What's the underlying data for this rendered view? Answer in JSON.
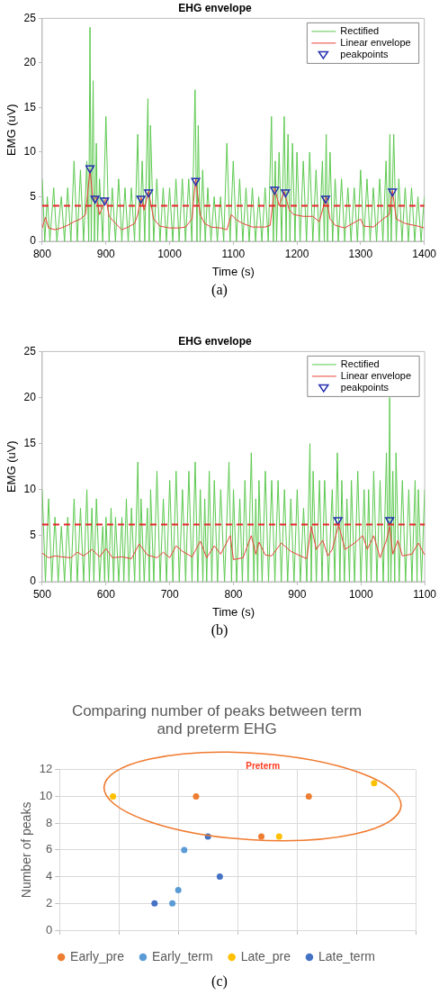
{
  "chart_data": [
    {
      "type": "line",
      "title": "EHG envelope",
      "xlabel": "Time (s)",
      "ylabel": "EMG (uV)",
      "xlim": [
        800,
        1400
      ],
      "xticks": [
        800,
        900,
        1000,
        1100,
        1200,
        1300,
        1400
      ],
      "ylim": [
        0,
        25
      ],
      "yticks": [
        0,
        5,
        10,
        15,
        20,
        25
      ],
      "grid": false,
      "legend": "top right",
      "annotations": [
        "(a)"
      ],
      "ref_lines": [
        {
          "axis": "y",
          "value": 4,
          "color": "#e8262b",
          "line_style": "dashed"
        }
      ],
      "series": [
        {
          "name": "Rectified",
          "type": "line",
          "color": "#5cc94f",
          "marker": "none",
          "x": [
            800,
            804,
            808,
            812,
            818,
            823,
            830,
            835,
            840,
            845,
            850,
            855,
            860,
            865,
            870,
            873,
            875,
            877,
            880,
            882,
            885,
            887,
            890,
            895,
            900,
            905,
            910,
            915,
            920,
            925,
            930,
            935,
            940,
            945,
            950,
            953,
            957,
            961,
            966,
            968,
            970,
            975,
            980,
            985,
            990,
            995,
            1000,
            1005,
            1010,
            1015,
            1020,
            1025,
            1030,
            1035,
            1040,
            1043,
            1045,
            1048,
            1052,
            1056,
            1060,
            1065,
            1070,
            1075,
            1080,
            1085,
            1090,
            1095,
            1100,
            1105,
            1110,
            1115,
            1120,
            1125,
            1130,
            1135,
            1140,
            1145,
            1150,
            1155,
            1160,
            1163,
            1166,
            1168,
            1172,
            1176,
            1180,
            1183,
            1186,
            1189,
            1193,
            1197,
            1200,
            1205,
            1210,
            1215,
            1220,
            1225,
            1230,
            1235,
            1240,
            1243,
            1246,
            1248,
            1252,
            1256,
            1260,
            1265,
            1270,
            1275,
            1280,
            1285,
            1290,
            1295,
            1300,
            1305,
            1310,
            1315,
            1320,
            1325,
            1330,
            1335,
            1340,
            1343,
            1346,
            1348,
            1352,
            1356,
            1360,
            1365,
            1370,
            1375,
            1380,
            1385,
            1390,
            1395,
            1400
          ],
          "values": [
            7,
            0,
            5,
            0,
            6,
            0,
            5,
            0,
            6,
            0,
            9,
            0,
            8,
            0,
            9,
            0,
            24,
            0,
            18,
            0,
            11,
            0,
            7,
            0,
            14,
            0,
            6,
            0,
            7,
            0,
            6,
            0,
            6,
            0,
            12,
            0,
            9,
            0,
            16,
            0,
            13,
            0,
            7,
            0,
            6,
            0,
            6,
            0,
            7,
            0,
            7,
            0,
            7,
            0,
            17,
            0,
            13,
            0,
            8,
            0,
            6,
            0,
            5,
            0,
            5,
            0,
            11,
            0,
            9,
            0,
            7,
            0,
            6,
            0,
            6,
            0,
            5,
            0,
            6,
            0,
            14,
            0,
            9,
            0,
            10,
            0,
            14,
            0,
            12,
            0,
            11,
            0,
            10,
            0,
            9,
            0,
            10,
            0,
            8,
            0,
            9,
            0,
            12,
            0,
            10,
            0,
            7,
            0,
            7,
            0,
            6,
            0,
            6,
            0,
            8,
            0,
            7,
            0,
            6,
            0,
            7,
            0,
            9,
            0,
            12,
            0,
            12,
            0,
            7,
            0,
            6,
            0,
            6,
            0,
            5,
            0,
            5
          ]
        },
        {
          "name": "Linear envelope",
          "type": "line",
          "color": "#e8413a",
          "marker": "none",
          "x": [
            800,
            805,
            810,
            820,
            830,
            840,
            850,
            860,
            868,
            875,
            880,
            885,
            890,
            900,
            905,
            915,
            925,
            935,
            945,
            950,
            955,
            960,
            967,
            975,
            985,
            1000,
            1015,
            1025,
            1035,
            1041,
            1048,
            1055,
            1065,
            1080,
            1090,
            1097,
            1105,
            1115,
            1130,
            1150,
            1158,
            1165,
            1172,
            1180,
            1188,
            1195,
            1210,
            1225,
            1235,
            1246,
            1252,
            1260,
            1275,
            1300,
            1305,
            1320,
            1335,
            1345,
            1350,
            1356,
            1370,
            1390,
            1400
          ],
          "values": [
            1.5,
            2.7,
            1.5,
            1.3,
            1.5,
            1.8,
            2.2,
            2.5,
            3,
            8,
            4.5,
            5,
            3,
            4.8,
            2.8,
            2,
            1.3,
            1.6,
            2,
            3,
            5,
            3.5,
            5.6,
            2.5,
            1.7,
            1.5,
            1.5,
            1.6,
            2.5,
            7,
            3,
            2,
            1.6,
            1.5,
            1.3,
            3,
            2.4,
            2,
            1.6,
            1.6,
            1.8,
            6,
            4,
            5.6,
            3.5,
            3,
            2.8,
            2.8,
            2.2,
            5,
            2.5,
            1.8,
            1.5,
            2.5,
            1.7,
            1.6,
            2.5,
            3,
            5.7,
            2.5,
            2,
            1.7,
            1.5
          ]
        },
        {
          "name": "peakpoints",
          "type": "scatter",
          "color": "#2630b0",
          "marker": "triangle",
          "x": [
            875,
            883,
            898,
            955,
            967,
            1041,
            1165,
            1182,
            1245,
            1350
          ],
          "values": [
            8.2,
            4.8,
            4.6,
            4.8,
            5.5,
            6.8,
            5.8,
            5.5,
            4.8,
            5.6
          ]
        }
      ]
    },
    {
      "type": "line",
      "title": "EHG envelope",
      "xlabel": "Time (s)",
      "ylabel": "EMG (uV)",
      "xlim": [
        500,
        1100
      ],
      "xticks": [
        500,
        600,
        700,
        800,
        900,
        1000,
        1100
      ],
      "ylim": [
        0,
        25
      ],
      "yticks": [
        0,
        5,
        10,
        15,
        20,
        25
      ],
      "grid": false,
      "legend": "top right",
      "annotations": [
        "(b)"
      ],
      "ref_lines": [
        {
          "axis": "y",
          "value": 6.2,
          "color": "#e8262b",
          "line_style": "dashed"
        }
      ],
      "series": [
        {
          "name": "Rectified",
          "type": "line",
          "color": "#5cc94f",
          "marker": "none",
          "x": [
            500,
            505,
            510,
            515,
            520,
            525,
            530,
            535,
            540,
            545,
            550,
            555,
            560,
            565,
            570,
            574,
            578,
            581,
            585,
            590,
            595,
            598,
            600,
            604,
            608,
            612,
            615,
            620,
            625,
            628,
            632,
            636,
            640,
            645,
            650,
            653,
            655,
            660,
            665,
            668,
            670,
            675,
            680,
            685,
            690,
            695,
            700,
            705,
            710,
            715,
            720,
            725,
            730,
            735,
            740,
            744,
            748,
            752,
            755,
            758,
            762,
            766,
            770,
            775,
            780,
            786,
            793,
            797,
            800,
            805,
            810,
            814,
            818,
            823,
            828,
            832,
            835,
            838,
            840,
            845,
            850,
            855,
            860,
            865,
            870,
            875,
            880,
            885,
            890,
            895,
            900,
            905,
            910,
            915,
            920,
            922,
            925,
            930,
            935,
            939,
            943,
            949,
            955,
            959,
            963,
            967,
            970,
            974,
            978,
            982,
            985,
            990,
            995,
            1000,
            1005,
            1009,
            1012,
            1016,
            1020,
            1025,
            1030,
            1035,
            1040,
            1043,
            1045,
            1047,
            1050,
            1053,
            1055,
            1060,
            1065,
            1070,
            1075,
            1080,
            1085,
            1088,
            1090,
            1095,
            1100
          ],
          "values": [
            10,
            0,
            9,
            0,
            7,
            0,
            6,
            0,
            7,
            0,
            9,
            0,
            8,
            0,
            10,
            0,
            8,
            0,
            9,
            0,
            6,
            0,
            7,
            0,
            8,
            0,
            7,
            0,
            7,
            0,
            9,
            0,
            8,
            0,
            13,
            0,
            9,
            0,
            8,
            0,
            10,
            0,
            12,
            0,
            9,
            0,
            11,
            0,
            12,
            0,
            10,
            0,
            12,
            0,
            13,
            0,
            10,
            0,
            9,
            0,
            12,
            0,
            11,
            0,
            10,
            0,
            13,
            0,
            10,
            0,
            9,
            0,
            11,
            0,
            14,
            0,
            9,
            0,
            11,
            0,
            12,
            0,
            11,
            0,
            11,
            0,
            10,
            0,
            9,
            0,
            10,
            0,
            8,
            0,
            15,
            0,
            12,
            0,
            11,
            0,
            11,
            0,
            10,
            0,
            14,
            0,
            11,
            0,
            9,
            0,
            11,
            0,
            12,
            0,
            10,
            0,
            10,
            0,
            12,
            0,
            11,
            0,
            14,
            0,
            20,
            0,
            12,
            0,
            14,
            0,
            11,
            0,
            10,
            0,
            11,
            0,
            10,
            0,
            10
          ]
        },
        {
          "name": "Linear envelope",
          "type": "line",
          "color": "#e8413a",
          "marker": "none",
          "x": [
            500,
            510,
            520,
            530,
            545,
            555,
            565,
            578,
            590,
            600,
            610,
            625,
            640,
            652,
            665,
            680,
            690,
            700,
            710,
            720,
            735,
            748,
            758,
            770,
            780,
            795,
            800,
            815,
            828,
            835,
            840,
            850,
            860,
            875,
            890,
            905,
            915,
            922,
            930,
            940,
            948,
            955,
            965,
            975,
            990,
            1003,
            1010,
            1020,
            1030,
            1040,
            1045,
            1050,
            1058,
            1065,
            1080,
            1090,
            1100
          ],
          "values": [
            3.1,
            2.6,
            2.8,
            2.7,
            2.6,
            3.2,
            2.8,
            3.5,
            2.7,
            3.6,
            2.6,
            2.7,
            2.5,
            4.1,
            2.9,
            2.6,
            3.2,
            2.6,
            3.9,
            3.3,
            2.7,
            4.4,
            2.6,
            3.9,
            3,
            5,
            2.4,
            2.6,
            5,
            3,
            4.3,
            2.9,
            2.8,
            4.2,
            3.3,
            2.8,
            2.5,
            6,
            3.5,
            4.5,
            2.8,
            3.5,
            6.2,
            3.5,
            4.2,
            5,
            3.5,
            5,
            2.6,
            4.5,
            6,
            3,
            4.5,
            2.8,
            3,
            4.2,
            2.9
          ]
        },
        {
          "name": "peakpoints",
          "type": "scatter",
          "color": "#2630b0",
          "marker": "triangle",
          "x": [
            964,
            1045
          ],
          "values": [
            6.7,
            6.7
          ]
        }
      ]
    },
    {
      "type": "scatter",
      "title": "Comparing number of peaks between term and preterm EHG",
      "ylabel": "Number of peaks",
      "ylim": [
        0,
        12
      ],
      "yticks": [
        0,
        2,
        4,
        6,
        8,
        10,
        12
      ],
      "grid": true,
      "tick_labels": "y",
      "legend": "bottom",
      "marker": "circle",
      "annotations": [
        "Preterm",
        "(c)"
      ],
      "categories": [
        null,
        null,
        null,
        null,
        null,
        null,
        null,
        null,
        null,
        null,
        null,
        null,
        null,
        null,
        null,
        null,
        null,
        null,
        null,
        null,
        null,
        null,
        null,
        null,
        null,
        null,
        null,
        null,
        null,
        null,
        null,
        null,
        null,
        null,
        null,
        null,
        null,
        null,
        null,
        null,
        null,
        null,
        null,
        null,
        null,
        null,
        null,
        null,
        null,
        null,
        null,
        null,
        null,
        null,
        null,
        null,
        null,
        null,
        null,
        null,
        null
      ],
      "series": [
        {
          "name": "Early_pre",
          "color": "#ed7d31",
          "values": [
            null,
            null,
            null,
            null,
            null,
            null,
            null,
            null,
            null,
            null,
            null,
            null,
            null,
            null,
            null,
            null,
            null,
            null,
            null,
            null,
            null,
            null,
            null,
            10,
            null,
            null,
            null,
            null,
            null,
            null,
            null,
            null,
            null,
            null,
            7,
            null,
            null,
            null,
            null,
            null,
            null,
            null,
            10,
            null,
            null,
            null,
            null,
            null,
            null,
            null,
            null,
            null,
            null,
            null,
            null,
            null,
            null,
            null,
            null,
            null,
            null
          ]
        },
        {
          "name": "Early_term",
          "color": "#5b9bd5",
          "values": [
            null,
            null,
            null,
            null,
            null,
            null,
            null,
            null,
            null,
            null,
            null,
            null,
            null,
            null,
            null,
            null,
            null,
            null,
            null,
            2,
            3,
            6,
            null,
            null,
            null,
            null,
            null,
            null,
            null,
            null,
            null,
            null,
            null,
            null,
            null,
            null,
            null,
            null,
            null,
            null,
            null,
            null,
            null,
            null,
            null,
            null,
            null,
            null,
            null,
            null,
            null,
            null,
            null,
            null,
            null,
            null,
            null,
            null,
            null,
            null,
            null
          ]
        },
        {
          "name": "Late_pre",
          "color": "#ffc000",
          "values": [
            null,
            null,
            null,
            null,
            null,
            null,
            null,
            null,
            null,
            10,
            null,
            null,
            null,
            null,
            null,
            null,
            null,
            null,
            null,
            null,
            null,
            null,
            null,
            null,
            null,
            null,
            null,
            null,
            null,
            null,
            null,
            null,
            null,
            null,
            null,
            null,
            null,
            7,
            null,
            null,
            null,
            null,
            null,
            null,
            null,
            null,
            null,
            null,
            null,
            null,
            null,
            null,
            null,
            11,
            null,
            null,
            null,
            null,
            null,
            null,
            null
          ]
        },
        {
          "name": "Late_term",
          "color": "#4472c4",
          "values": [
            null,
            null,
            null,
            null,
            null,
            null,
            null,
            null,
            null,
            null,
            null,
            null,
            null,
            null,
            null,
            null,
            2,
            null,
            null,
            null,
            null,
            null,
            null,
            null,
            null,
            7,
            null,
            4,
            null,
            null,
            null,
            null,
            null,
            null,
            null,
            null,
            null,
            null,
            null,
            null,
            null,
            null,
            null,
            null,
            null,
            null,
            null,
            null,
            null,
            null,
            null,
            null,
            null,
            null,
            null,
            null,
            null,
            null,
            null,
            null,
            null
          ]
        }
      ]
    }
  ]
}
